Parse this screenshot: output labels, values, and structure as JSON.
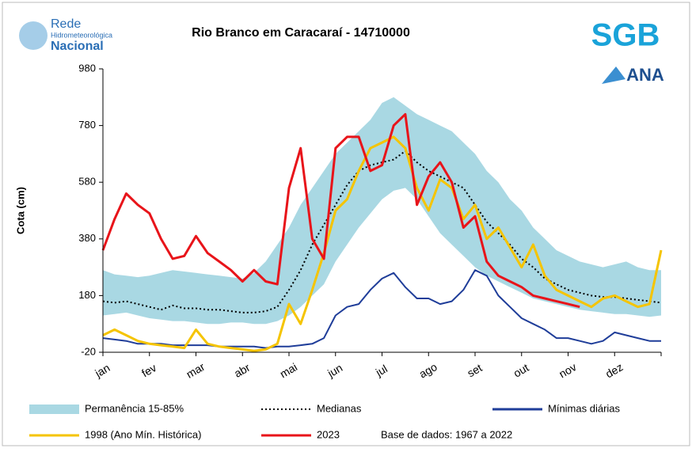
{
  "chart_data": {
    "type": "line",
    "title": "Rio Branco em Caracaraí - 14710000",
    "ylabel": "Cota (cm)",
    "annotation": "Base de dados: 1967 a 2022",
    "logos": {
      "rede": [
        "Rede",
        "Hidrometeorológica",
        "Nacional"
      ],
      "sgb": "SGB",
      "ana": "ANA"
    },
    "categories": [
      "jan",
      null,
      null,
      null,
      "fev",
      null,
      null,
      null,
      "mar",
      null,
      null,
      null,
      "abr",
      null,
      null,
      null,
      "mai",
      null,
      null,
      null,
      "jun",
      null,
      null,
      null,
      "jul",
      null,
      null,
      null,
      "ago",
      null,
      null,
      null,
      "set",
      null,
      null,
      null,
      "out",
      null,
      null,
      null,
      "nov",
      null,
      null,
      null,
      "dez",
      null,
      null,
      null,
      null
    ],
    "ylim": [
      -20,
      980
    ],
    "yticks": [
      -20,
      180,
      380,
      580,
      780,
      980
    ],
    "band": {
      "name": "Permanência 15-85%",
      "color": "#a9d8e3",
      "low": [
        110,
        115,
        120,
        110,
        100,
        95,
        90,
        90,
        85,
        80,
        80,
        85,
        85,
        80,
        80,
        90,
        110,
        140,
        180,
        220,
        300,
        360,
        420,
        470,
        520,
        550,
        560,
        520,
        460,
        400,
        360,
        320,
        280,
        250,
        230,
        210,
        190,
        170,
        160,
        150,
        140,
        130,
        125,
        120,
        115,
        115,
        110,
        105,
        110
      ],
      "high": [
        270,
        255,
        250,
        245,
        250,
        260,
        270,
        265,
        260,
        255,
        250,
        245,
        240,
        260,
        300,
        360,
        420,
        500,
        560,
        620,
        680,
        720,
        760,
        800,
        860,
        880,
        850,
        820,
        800,
        780,
        760,
        720,
        680,
        620,
        580,
        520,
        480,
        420,
        380,
        340,
        320,
        300,
        290,
        280,
        290,
        300,
        280,
        270,
        270
      ]
    },
    "series": [
      {
        "name": "Medianas",
        "color": "#000000",
        "dash": true,
        "values": [
          160,
          155,
          160,
          150,
          140,
          130,
          145,
          135,
          135,
          130,
          130,
          125,
          120,
          120,
          125,
          140,
          200,
          270,
          360,
          430,
          500,
          570,
          620,
          640,
          650,
          660,
          690,
          650,
          620,
          600,
          580,
          560,
          500,
          440,
          400,
          360,
          310,
          280,
          240,
          220,
          200,
          190,
          180,
          175,
          175,
          170,
          165,
          160,
          155
        ]
      },
      {
        "name": "Mínimas diárias",
        "color": "#1f3d99",
        "values": [
          30,
          25,
          20,
          10,
          10,
          10,
          5,
          5,
          5,
          5,
          0,
          0,
          0,
          0,
          -5,
          0,
          0,
          5,
          10,
          30,
          110,
          140,
          150,
          200,
          240,
          260,
          210,
          170,
          170,
          150,
          160,
          200,
          270,
          250,
          180,
          140,
          100,
          80,
          60,
          30,
          30,
          20,
          10,
          20,
          50,
          40,
          30,
          20,
          20
        ]
      },
      {
        "name": "1998 (Ano Mín. Histórica)",
        "color": "#f5c400",
        "values": [
          40,
          60,
          40,
          20,
          10,
          5,
          0,
          -5,
          60,
          10,
          0,
          -5,
          -10,
          -15,
          -10,
          10,
          150,
          80,
          200,
          330,
          480,
          520,
          620,
          700,
          720,
          740,
          700,
          560,
          480,
          590,
          560,
          450,
          500,
          380,
          420,
          350,
          280,
          360,
          250,
          200,
          180,
          160,
          140,
          170,
          180,
          160,
          140,
          150,
          340
        ]
      },
      {
        "name": "2023",
        "color": "#e8141a",
        "values": [
          340,
          450,
          540,
          500,
          470,
          380,
          310,
          320,
          390,
          330,
          300,
          270,
          230,
          270,
          230,
          220,
          560,
          700,
          380,
          310,
          700,
          740,
          740,
          620,
          640,
          780,
          820,
          500,
          600,
          650,
          580,
          420,
          460,
          300,
          250,
          230,
          210,
          180,
          170,
          160,
          150,
          140,
          null,
          null,
          null,
          null,
          null,
          null,
          null
        ]
      }
    ]
  }
}
